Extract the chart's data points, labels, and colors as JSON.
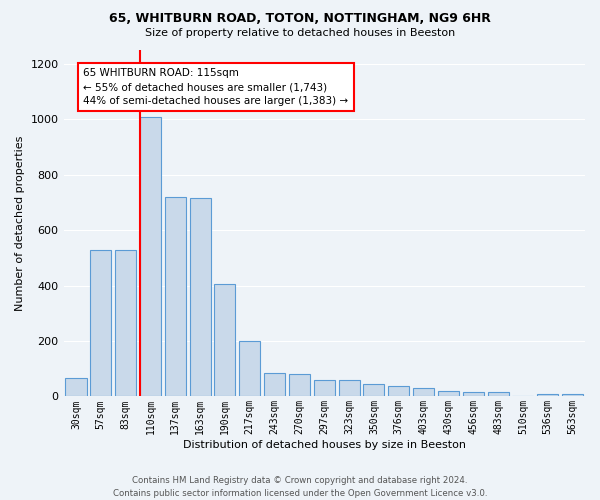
{
  "title_line1": "65, WHITBURN ROAD, TOTON, NOTTINGHAM, NG9 6HR",
  "title_line2": "Size of property relative to detached houses in Beeston",
  "xlabel": "Distribution of detached houses by size in Beeston",
  "ylabel": "Number of detached properties",
  "categories": [
    "30sqm",
    "57sqm",
    "83sqm",
    "110sqm",
    "137sqm",
    "163sqm",
    "190sqm",
    "217sqm",
    "243sqm",
    "270sqm",
    "297sqm",
    "323sqm",
    "350sqm",
    "376sqm",
    "403sqm",
    "430sqm",
    "456sqm",
    "483sqm",
    "510sqm",
    "536sqm",
    "563sqm"
  ],
  "values": [
    65,
    530,
    530,
    1010,
    720,
    715,
    405,
    200,
    85,
    82,
    60,
    58,
    45,
    38,
    30,
    18,
    17,
    16,
    2,
    10,
    10
  ],
  "bar_color": "#c9d9ea",
  "bar_edge_color": "#5b9bd5",
  "bg_color": "#eef3f8",
  "grid_color": "#ffffff",
  "property_line_index": 3,
  "property_line_color": "red",
  "annotation_text": "65 WHITBURN ROAD: 115sqm\n← 55% of detached houses are smaller (1,743)\n44% of semi-detached houses are larger (1,383) →",
  "annotation_box_color": "white",
  "annotation_box_edge": "red",
  "footer_line1": "Contains HM Land Registry data © Crown copyright and database right 2024.",
  "footer_line2": "Contains public sector information licensed under the Open Government Licence v3.0.",
  "ylim": [
    0,
    1250
  ],
  "yticks": [
    0,
    200,
    400,
    600,
    800,
    1000,
    1200
  ]
}
